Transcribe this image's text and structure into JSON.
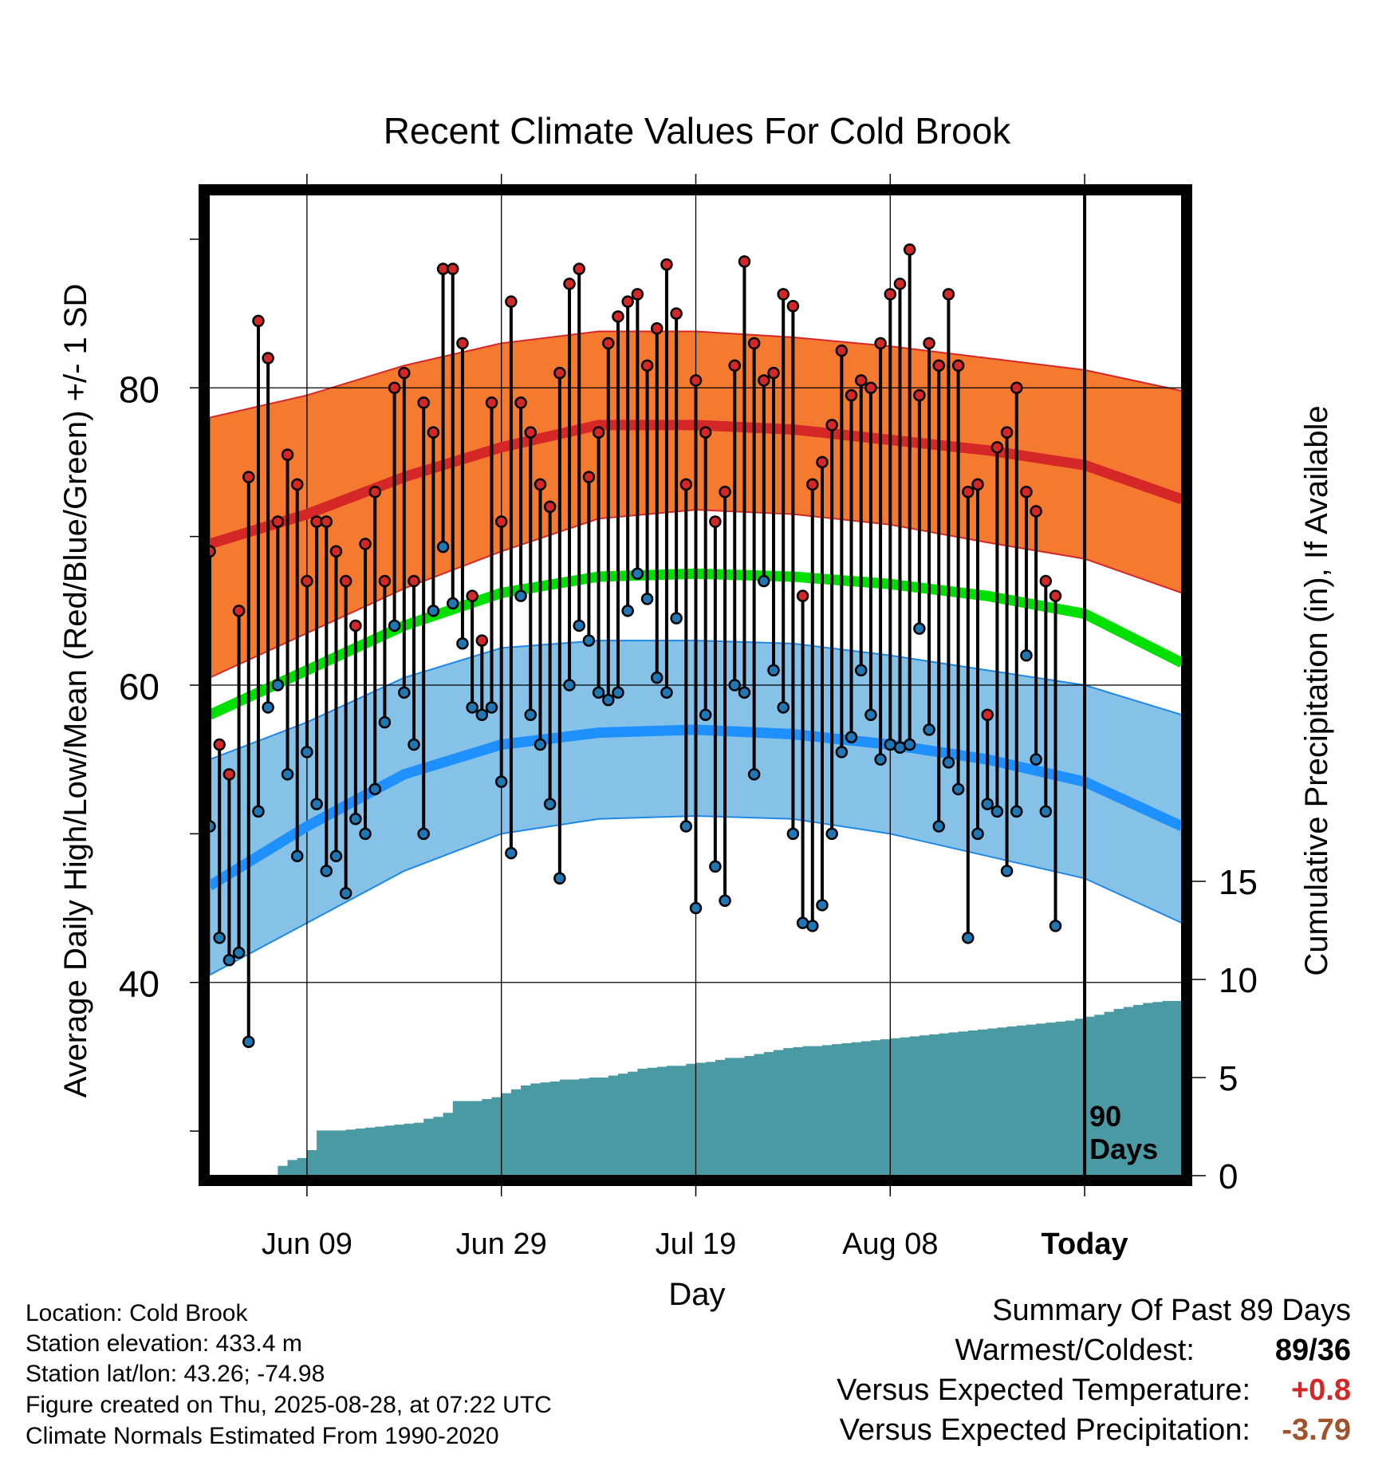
{
  "chart_data": {
    "type": "line",
    "title": "Recent Climate Values For Cold Brook",
    "xlabel": "Day",
    "ylabel": "Average Daily High/Low/Mean (Red/Blue/Green) +/- 1 SD",
    "y2label": "Cumulative Precipitation (in), If Available",
    "x_ticks": [
      "Jun 09",
      "Jun 29",
      "Jul 19",
      "Aug 08",
      "Today"
    ],
    "y_ticks": [
      "40",
      "60",
      "80"
    ],
    "y2_ticks": [
      "0",
      "5",
      "10",
      "15"
    ],
    "ylim": [
      27,
      93
    ],
    "y2lim": [
      0,
      50
    ],
    "window_annotation": [
      "90",
      "Days"
    ],
    "normals": {
      "days": [
        0,
        10,
        20,
        30,
        40,
        50,
        60,
        70,
        80,
        90,
        100
      ],
      "high": [
        69.5,
        71.5,
        74.0,
        76.0,
        77.5,
        77.5,
        77.2,
        76.5,
        75.8,
        74.8,
        72.5
      ],
      "high_upper": [
        78.0,
        79.5,
        81.5,
        83.0,
        83.8,
        83.8,
        83.4,
        82.8,
        82.0,
        81.2,
        79.8
      ],
      "high_lower": [
        60.5,
        63.5,
        66.5,
        69.0,
        71.2,
        71.8,
        71.5,
        70.8,
        69.6,
        68.5,
        66.2
      ],
      "mean": [
        58.0,
        61.0,
        64.0,
        66.2,
        67.3,
        67.5,
        67.3,
        66.8,
        66.0,
        64.8,
        61.5
      ],
      "low": [
        46.5,
        50.5,
        54.0,
        56.0,
        56.8,
        57.0,
        56.7,
        56.0,
        55.0,
        53.5,
        50.5
      ],
      "low_upper": [
        55.0,
        57.5,
        60.5,
        62.5,
        63.0,
        63.0,
        62.8,
        62.0,
        61.0,
        60.0,
        58.0
      ],
      "low_lower": [
        40.5,
        44.0,
        47.5,
        50.0,
        51.0,
        51.2,
        51.0,
        50.0,
        48.5,
        47.0,
        44.0
      ]
    },
    "series": [
      {
        "name": "High",
        "color": "#d62728",
        "values": [
          69,
          56,
          54,
          65,
          74,
          84.5,
          82,
          71,
          75.5,
          73.5,
          67,
          71,
          71,
          69,
          67,
          64,
          69.5,
          73,
          67,
          80,
          81,
          67,
          79,
          77,
          88,
          88,
          83,
          66,
          63,
          79,
          71,
          85.8,
          79,
          77,
          73.5,
          72,
          81,
          87,
          88,
          74,
          77,
          83,
          84.8,
          85.8,
          86.3,
          81.5,
          84,
          88.3,
          85,
          73.5,
          80.5,
          77,
          71,
          73,
          81.5,
          88.5,
          83,
          80.5,
          81,
          86.3,
          85.5,
          66,
          73.5,
          75,
          77.5,
          82.5,
          79.5,
          80.5,
          80,
          83,
          86.3,
          87,
          89.3,
          79.5,
          83,
          81.5,
          86.3,
          81.5,
          73,
          73.5,
          58,
          76,
          77,
          80,
          73,
          71.7,
          67,
          66
        ]
      },
      {
        "name": "Low",
        "color": "#1f77b4",
        "values": [
          50.5,
          43,
          41.5,
          42,
          36,
          51.5,
          58.5,
          60,
          54,
          48.5,
          55.5,
          52,
          47.5,
          48.5,
          46,
          51,
          50,
          53,
          57.5,
          64,
          59.5,
          56,
          50,
          65,
          69.3,
          65.5,
          62.8,
          58.5,
          58,
          58.5,
          53.5,
          48.7,
          66,
          58,
          56,
          52,
          47,
          60,
          64,
          63,
          59.5,
          59,
          59.5,
          65,
          67.5,
          65.8,
          60.5,
          59.5,
          64.5,
          50.5,
          45,
          58,
          47.8,
          45.5,
          60,
          59.5,
          54,
          67,
          61,
          58.5,
          50,
          44,
          43.8,
          45.2,
          50,
          55.5,
          56.5,
          61,
          58,
          55,
          56,
          55.8,
          56,
          63.8,
          57,
          50.5,
          54.8,
          53,
          43,
          50,
          52,
          51.5,
          47.5,
          51.5,
          62,
          55,
          51.5,
          43.8
        ]
      },
      {
        "name": "Cumulative Precipitation",
        "color": "#4a9aa4",
        "days": [
          0,
          6,
          7,
          8,
          9,
          10,
          11,
          12,
          13,
          14,
          15,
          16,
          17,
          18,
          19,
          20,
          21,
          22,
          23,
          24,
          25,
          26,
          27,
          28,
          29,
          30,
          31,
          32,
          33,
          34,
          35,
          36,
          37,
          38,
          39,
          40,
          41,
          42,
          43,
          44,
          45,
          46,
          47,
          48,
          49,
          50,
          51,
          52,
          53,
          54,
          55,
          56,
          57,
          58,
          59,
          60,
          61,
          62,
          63,
          64,
          65,
          66,
          67,
          68,
          69,
          70,
          71,
          72,
          73,
          74,
          75,
          76,
          77,
          78,
          79,
          80,
          81,
          82,
          83,
          84,
          85,
          86,
          87,
          88,
          89,
          90,
          91,
          92,
          93,
          94,
          95,
          96,
          97,
          98,
          99,
          100
        ],
        "values": [
          0,
          0,
          0.5,
          0.8,
          0.9,
          1.3,
          2.3,
          2.3,
          2.3,
          2.35,
          2.4,
          2.45,
          2.5,
          2.55,
          2.6,
          2.65,
          2.7,
          2.9,
          3,
          3.2,
          3.8,
          3.8,
          3.8,
          3.9,
          4,
          4.2,
          4.4,
          4.6,
          4.7,
          4.75,
          4.8,
          4.9,
          4.9,
          4.95,
          5,
          5,
          5.1,
          5.2,
          5.3,
          5.45,
          5.5,
          5.55,
          5.6,
          5.6,
          5.7,
          5.75,
          5.8,
          5.9,
          6,
          6,
          6.1,
          6.2,
          6.3,
          6.4,
          6.5,
          6.55,
          6.6,
          6.6,
          6.65,
          6.7,
          6.75,
          6.8,
          6.85,
          6.9,
          6.95,
          7,
          7.05,
          7.1,
          7.15,
          7.2,
          7.25,
          7.3,
          7.35,
          7.4,
          7.45,
          7.5,
          7.55,
          7.6,
          7.65,
          7.7,
          7.75,
          7.8,
          7.85,
          7.9,
          8,
          8.1,
          8.2,
          8.35,
          8.5,
          8.6,
          8.7,
          8.8,
          8.85,
          8.9,
          8.9,
          8.9
        ]
      }
    ]
  },
  "info": {
    "location": "Location: Cold Brook",
    "elevation": "Station elevation: 433.4 m",
    "latlon": "Station lat/lon: 43.26; -74.98",
    "created": "Figure created on Thu, 2025-08-28, at 07:22 UTC",
    "normals": "Climate Normals Estimated From 1990-2020"
  },
  "summary": {
    "title": "Summary Of Past 89 Days",
    "warmest_label": "Warmest/Coldest:",
    "warmest_value": "89/36",
    "temp_label": "Versus Expected Temperature:",
    "temp_value": "+0.8",
    "temp_color": "#d62728",
    "precip_label": "Versus Expected Precipitation:",
    "precip_value": "-3.79",
    "precip_color": "#a0522d"
  }
}
